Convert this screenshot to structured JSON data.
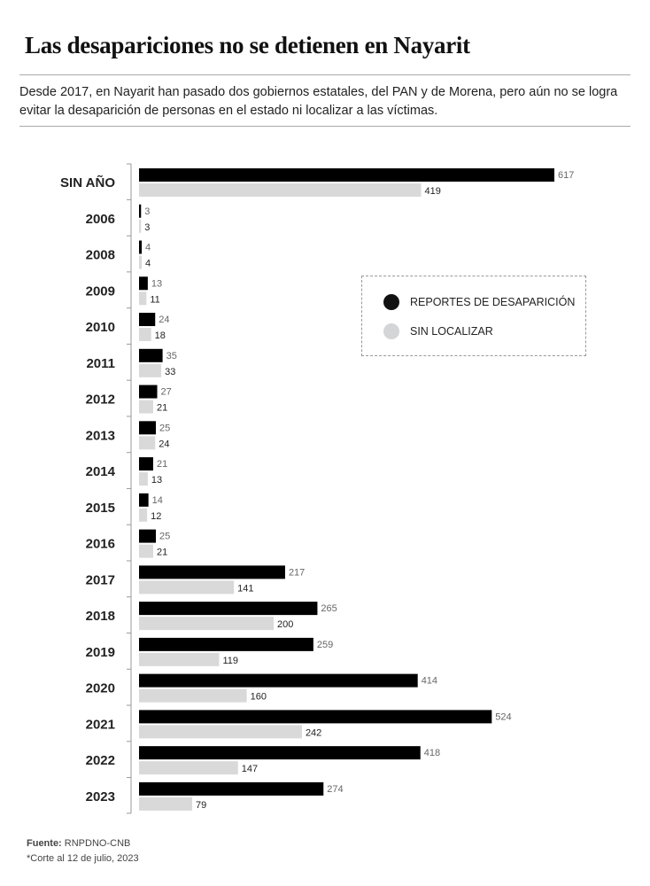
{
  "title": "Las desapariciones no se detienen en Nayarit",
  "subtitle": "Desde 2017, en Nayarit han pasado dos gobiernos estatales, del PAN y de Morena, pero aún no se logra evitar la desaparición de personas en el estado ni localizar a las víctimas.",
  "source_label": "Fuente:",
  "source": "RNPDNO-CNB",
  "note": "*Corte al 12 de julio, 2023",
  "colors": {
    "reportes": "#000000",
    "sin_localizar": "#d9d9d9"
  },
  "chart_data": {
    "type": "bar",
    "orientation": "horizontal",
    "categories": [
      "SIN AÑO",
      "2006",
      "2008",
      "2009",
      "2010",
      "2011",
      "2012",
      "2013",
      "2014",
      "2015",
      "2016",
      "2017",
      "2018",
      "2019",
      "2020",
      "2021",
      "2022",
      "2023"
    ],
    "series": [
      {
        "name": "REPORTES DE DESAPARICIÓN",
        "color": "#000000",
        "values": [
          617,
          3,
          4,
          13,
          24,
          35,
          27,
          25,
          21,
          14,
          25,
          217,
          265,
          259,
          414,
          524,
          418,
          274
        ]
      },
      {
        "name": "SIN LOCALIZAR",
        "color": "#d9d9d9",
        "values": [
          419,
          3,
          4,
          11,
          18,
          33,
          21,
          24,
          13,
          12,
          21,
          141,
          200,
          119,
          160,
          242,
          147,
          79
        ]
      }
    ],
    "legend_placement": "right",
    "grid": false,
    "data_labels": true
  }
}
